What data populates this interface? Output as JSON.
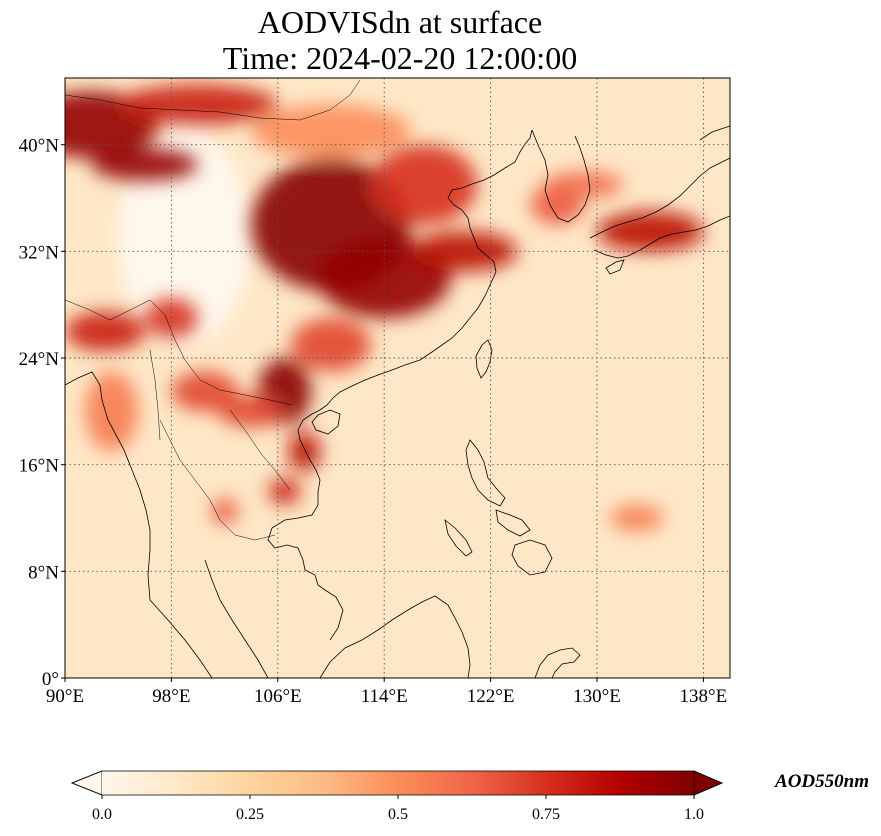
{
  "title": {
    "line1": "AODVISdn at surface",
    "line2": "Time: 2024-02-20 12:00:00"
  },
  "map": {
    "lon_range": [
      90,
      140
    ],
    "lat_range": [
      0,
      45
    ],
    "lon_ticks": [
      {
        "value": 90,
        "label": "90°E"
      },
      {
        "value": 98,
        "label": "98°E"
      },
      {
        "value": 106,
        "label": "106°E"
      },
      {
        "value": 114,
        "label": "114°E"
      },
      {
        "value": 122,
        "label": "122°E"
      },
      {
        "value": 130,
        "label": "130°E"
      },
      {
        "value": 138,
        "label": "138°E"
      }
    ],
    "lat_ticks": [
      {
        "value": 0,
        "label": "0°"
      },
      {
        "value": 8,
        "label": "8°N"
      },
      {
        "value": 16,
        "label": "16°N"
      },
      {
        "value": 24,
        "label": "24°N"
      },
      {
        "value": 32,
        "label": "32°N"
      },
      {
        "value": 40,
        "label": "40°N"
      }
    ],
    "gridlines": true,
    "colormap": "OrRd"
  },
  "colorbar": {
    "label": "AOD550nm",
    "ticks": [
      "0.0",
      "0.25",
      "0.5",
      "0.75",
      "1.0"
    ],
    "range": [
      0.0,
      1.0
    ],
    "extend": "both",
    "colors": [
      "#fff7ec",
      "#fee8c8",
      "#fdd49e",
      "#fdbb84",
      "#fc8d59",
      "#ef6548",
      "#d7301f",
      "#b30000",
      "#7f0000"
    ]
  },
  "aod_field": {
    "background": 0.13,
    "hotspots": [
      {
        "lon": 92,
        "lat": 41.5,
        "rx": 5,
        "ry": 2.5,
        "value": 0.95
      },
      {
        "lon": 96,
        "lat": 38.5,
        "rx": 4,
        "ry": 1.2,
        "value": 0.95
      },
      {
        "lon": 100,
        "lat": 43,
        "rx": 6,
        "ry": 1.5,
        "value": 0.8
      },
      {
        "lon": 110,
        "lat": 34,
        "rx": 6,
        "ry": 5,
        "value": 0.98
      },
      {
        "lon": 114,
        "lat": 30,
        "rx": 5,
        "ry": 3,
        "value": 0.95
      },
      {
        "lon": 117,
        "lat": 37,
        "rx": 4,
        "ry": 3,
        "value": 0.75
      },
      {
        "lon": 120,
        "lat": 32,
        "rx": 4,
        "ry": 1.5,
        "value": 0.85
      },
      {
        "lon": 106.5,
        "lat": 21.5,
        "rx": 2,
        "ry": 2.5,
        "value": 0.97
      },
      {
        "lon": 108,
        "lat": 17,
        "rx": 1.2,
        "ry": 1.5,
        "value": 0.85
      },
      {
        "lon": 104,
        "lat": 20,
        "rx": 2.5,
        "ry": 1.2,
        "value": 0.7
      },
      {
        "lon": 100.5,
        "lat": 21.5,
        "rx": 2.5,
        "ry": 1.5,
        "value": 0.7
      },
      {
        "lon": 93,
        "lat": 26,
        "rx": 3,
        "ry": 1.5,
        "value": 0.8
      },
      {
        "lon": 98,
        "lat": 27,
        "rx": 2,
        "ry": 1.5,
        "value": 0.75
      },
      {
        "lon": 106.5,
        "lat": 14,
        "rx": 1.2,
        "ry": 1,
        "value": 0.8
      },
      {
        "lon": 102,
        "lat": 12.5,
        "rx": 1,
        "ry": 1,
        "value": 0.65
      },
      {
        "lon": 110,
        "lat": 25,
        "rx": 3,
        "ry": 2,
        "value": 0.7
      },
      {
        "lon": 127,
        "lat": 35.5,
        "rx": 2,
        "ry": 1.5,
        "value": 0.65
      },
      {
        "lon": 134,
        "lat": 33.5,
        "rx": 4,
        "ry": 1.5,
        "value": 0.85
      },
      {
        "lon": 129,
        "lat": 37,
        "rx": 3,
        "ry": 1,
        "value": 0.6
      },
      {
        "lon": 133,
        "lat": 12,
        "rx": 2,
        "ry": 1,
        "value": 0.55
      },
      {
        "lon": 93.5,
        "lat": 20,
        "rx": 2,
        "ry": 3,
        "value": 0.55
      },
      {
        "lon": 110,
        "lat": 41,
        "rx": 6,
        "ry": 2,
        "value": 0.5
      }
    ],
    "clear_areas": [
      {
        "lon": 99,
        "lat": 33,
        "rx": 5,
        "ry": 8
      },
      {
        "lon": 99,
        "lat": 42,
        "rx": 2,
        "ry": 1.2
      }
    ]
  }
}
